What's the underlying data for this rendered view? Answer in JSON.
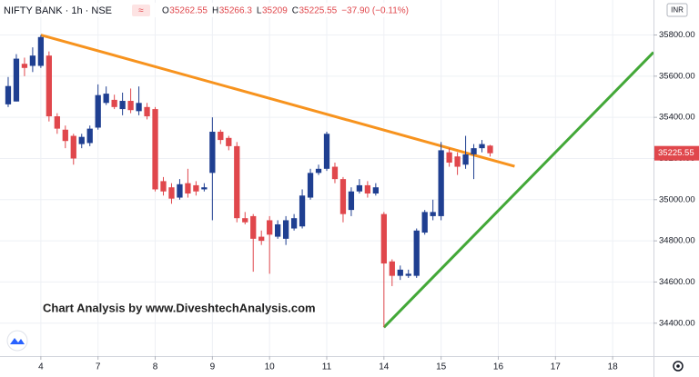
{
  "chart_data": {
    "type": "candlestick",
    "title": "NIFTY BANK · 1h · NSE",
    "ohlc_labels": [
      "O",
      "H",
      "L",
      "C"
    ],
    "change": "−37.90 (−0.11%)",
    "currency": "INR",
    "annotation": "Chart Analysis by www.DiveshtechAnalysis.com",
    "up_color": "#1f3f91",
    "down_color": "#e0474c",
    "grid": true,
    "x": [
      -4,
      -3,
      -2,
      -1,
      0,
      1,
      2,
      3,
      4,
      5,
      6,
      7,
      8,
      9,
      10,
      11,
      12,
      13,
      14,
      15,
      16,
      17,
      18,
      19,
      20,
      21,
      22,
      23,
      24,
      25,
      26,
      27,
      28,
      29,
      30,
      31,
      32,
      33,
      34,
      35,
      36,
      37,
      38,
      39,
      40,
      41,
      42,
      43,
      44,
      45,
      46,
      47,
      48,
      49,
      50,
      51,
      52,
      53,
      54,
      55
    ],
    "open": [
      35463,
      35477,
      35660,
      35650,
      35650,
      35700,
      35405,
      35340,
      35310,
      35270,
      35275,
      35350,
      35470,
      35485,
      35440,
      35480,
      35430,
      35450,
      35440,
      35090,
      35060,
      35010,
      35080,
      35070,
      35050,
      35130,
      35330,
      35300,
      35260,
      34910,
      34920,
      34820,
      34900,
      34820,
      34810,
      34860,
      34870,
      35010,
      35130,
      35150,
      35160,
      35100,
      34950,
      35040,
      35070,
      35030,
      34930,
      34700,
      34630,
      34630,
      34630,
      34840,
      34920,
      34920,
      35230,
      35210,
      35170,
      35220,
      35250,
      35262.55
    ],
    "high": [
      35596,
      35707,
      35690,
      35740,
      35800,
      35720,
      35420,
      35360,
      35320,
      35320,
      35360,
      35560,
      35550,
      35510,
      35520,
      35540,
      35550,
      35470,
      35450,
      35110,
      35080,
      35100,
      35150,
      35090,
      35080,
      35400,
      35340,
      35310,
      35280,
      34940,
      34930,
      34850,
      34920,
      34900,
      34920,
      34930,
      35050,
      35150,
      35170,
      35330,
      35180,
      35110,
      35060,
      35100,
      35090,
      35080,
      34940,
      34710,
      34680,
      34660,
      34860,
      34950,
      35000,
      35280,
      35250,
      35230,
      35310,
      35270,
      35290,
      35266.3
    ],
    "low": [
      35450,
      35477,
      35600,
      35620,
      35640,
      35380,
      35320,
      35250,
      35170,
      35250,
      35260,
      35340,
      35460,
      35440,
      35410,
      35420,
      35410,
      35390,
      35040,
      35020,
      34980,
      35000,
      35010,
      35020,
      35040,
      34900,
      35270,
      35240,
      34890,
      34880,
      34650,
      34780,
      34640,
      34810,
      34780,
      34850,
      34860,
      35000,
      35120,
      35140,
      35080,
      34890,
      34920,
      35030,
      35010,
      35020,
      34380,
      34580,
      34610,
      34620,
      34620,
      34830,
      34900,
      34900,
      35160,
      35120,
      35150,
      35100,
      35230,
      35209.0
    ],
    "close": [
      35552,
      35685,
      35640,
      35700,
      35790,
      35405,
      35345,
      35285,
      35200,
      35305,
      35345,
      35508,
      35515,
      35450,
      35480,
      35435,
      35470,
      35405,
      35050,
      35040,
      35005,
      35075,
      35030,
      35040,
      35060,
      35330,
      35290,
      35260,
      34910,
      34890,
      34810,
      34800,
      34830,
      34880,
      34900,
      34910,
      35020,
      35130,
      35150,
      35320,
      35100,
      34930,
      35040,
      35070,
      35030,
      35060,
      34690,
      34630,
      34660,
      34640,
      34850,
      34940,
      34940,
      35240,
      35180,
      35160,
      35220,
      35250,
      35270,
      35225.55
    ],
    "xlim": [
      -5,
      75
    ],
    "xticks": [
      {
        "value": 0,
        "label": "4"
      },
      {
        "value": 7,
        "label": "7"
      },
      {
        "value": 14,
        "label": "8"
      },
      {
        "value": 21,
        "label": "9"
      },
      {
        "value": 28,
        "label": "10"
      },
      {
        "value": 35,
        "label": "11"
      },
      {
        "value": 42,
        "label": "14"
      },
      {
        "value": 49,
        "label": "15"
      },
      {
        "value": 56,
        "label": "16"
      },
      {
        "value": 63,
        "label": "17"
      },
      {
        "value": 70,
        "label": "18"
      }
    ],
    "ylim": [
      34240,
      35970
    ],
    "yticks": [
      {
        "value": 34400,
        "label": "34400.00"
      },
      {
        "value": 34600,
        "label": "34600.00"
      },
      {
        "value": 34800,
        "label": "34800.00"
      },
      {
        "value": 35000,
        "label": "35000.00"
      },
      {
        "value": 35200,
        "label": "35200.00"
      },
      {
        "value": 35400,
        "label": "35400.00"
      },
      {
        "value": 35600,
        "label": "35600.00"
      },
      {
        "value": 35800,
        "label": "35800.00"
      }
    ],
    "trendlines": [
      {
        "color": "#f7931e",
        "x": [
          0,
          58
        ],
        "y": [
          35800,
          35162
        ]
      },
      {
        "color": "#43a838",
        "x": [
          42,
          75
        ],
        "y": [
          34380,
          35716
        ]
      }
    ]
  }
}
